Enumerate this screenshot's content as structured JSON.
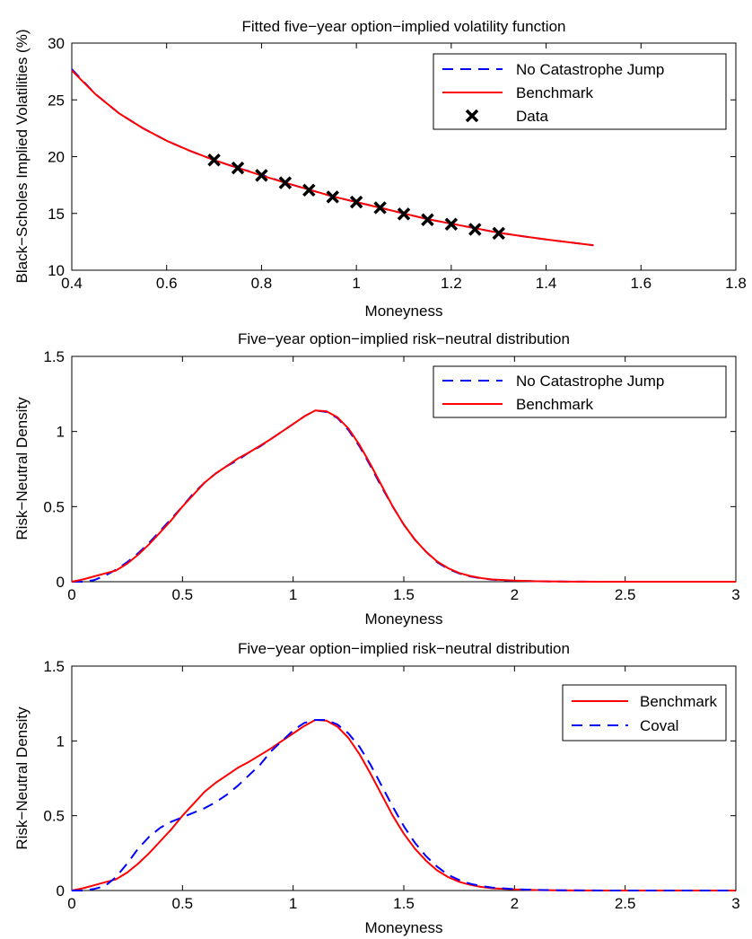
{
  "chart_data": [
    {
      "type": "line",
      "title": "Fitted five−year option−implied volatility function",
      "xlabel": "Moneyness",
      "ylabel": "Black−Scholes Implied Volatilities (%)",
      "xlim": [
        0.4,
        1.8
      ],
      "ylim": [
        10,
        30
      ],
      "xticks": [
        0.4,
        0.6,
        0.8,
        1,
        1.2,
        1.4,
        1.6,
        1.8
      ],
      "xtick_labels": [
        "0.4",
        "0.6",
        "0.8",
        "1",
        "1.2",
        "1.4",
        "1.6",
        "1.8"
      ],
      "yticks": [
        10,
        15,
        20,
        25,
        30
      ],
      "ytick_labels": [
        "10",
        "15",
        "20",
        "25",
        "30"
      ],
      "grid": false,
      "legend_position": "top-right",
      "series": [
        {
          "name": "No Catastrophe Jump",
          "style": "dashed",
          "color": "#0000ff",
          "x": [
            0.4,
            0.45,
            0.5,
            0.55,
            0.6,
            0.65,
            0.7,
            0.75,
            0.8,
            0.85,
            0.9,
            0.95,
            1.0,
            1.05,
            1.1,
            1.15,
            1.2,
            1.25,
            1.3,
            1.35,
            1.4,
            1.45,
            1.5
          ],
          "y": [
            27.7,
            25.5,
            23.8,
            22.5,
            21.4,
            20.5,
            19.7,
            19.0,
            18.4,
            17.7,
            17.1,
            16.5,
            16.0,
            15.5,
            15.0,
            14.5,
            14.1,
            13.7,
            13.3,
            13.0,
            12.7,
            12.45,
            12.2
          ]
        },
        {
          "name": "Benchmark",
          "style": "solid",
          "color": "#ff0000",
          "x": [
            0.4,
            0.45,
            0.5,
            0.55,
            0.6,
            0.65,
            0.7,
            0.75,
            0.8,
            0.85,
            0.9,
            0.95,
            1.0,
            1.05,
            1.1,
            1.15,
            1.2,
            1.25,
            1.3,
            1.35,
            1.4,
            1.45,
            1.5
          ],
          "y": [
            27.6,
            25.5,
            23.8,
            22.5,
            21.4,
            20.5,
            19.7,
            19.0,
            18.35,
            17.7,
            17.1,
            16.5,
            16.0,
            15.5,
            15.0,
            14.5,
            14.1,
            13.7,
            13.3,
            13.0,
            12.7,
            12.45,
            12.2
          ]
        },
        {
          "name": "Data",
          "style": "markers",
          "color": "#000000",
          "x": [
            0.7,
            0.75,
            0.8,
            0.85,
            0.9,
            0.95,
            1.0,
            1.05,
            1.1,
            1.15,
            1.2,
            1.25,
            1.3
          ],
          "y": [
            19.7,
            19.0,
            18.35,
            17.7,
            17.05,
            16.45,
            16.0,
            15.5,
            14.95,
            14.45,
            14.05,
            13.6,
            13.25
          ]
        }
      ]
    },
    {
      "type": "line",
      "title": "Five−year option−implied risk−neutral distribution",
      "xlabel": "Moneyness",
      "ylabel": "Risk−Neutral Density",
      "xlim": [
        0,
        3
      ],
      "ylim": [
        0,
        1.5
      ],
      "xticks": [
        0,
        0.5,
        1,
        1.5,
        2,
        2.5,
        3
      ],
      "xtick_labels": [
        "0",
        "0.5",
        "1",
        "1.5",
        "2",
        "2.5",
        "3"
      ],
      "yticks": [
        0,
        0.5,
        1,
        1.5
      ],
      "ytick_labels": [
        "0",
        "0.5",
        "1",
        "1.5"
      ],
      "grid": false,
      "legend_position": "top-right",
      "series": [
        {
          "name": "No Catastrophe Jump",
          "style": "dashed",
          "color": "#0000ff",
          "x": [
            0,
            0.05,
            0.1,
            0.15,
            0.2,
            0.25,
            0.3,
            0.35,
            0.4,
            0.45,
            0.5,
            0.55,
            0.6,
            0.65,
            0.7,
            0.75,
            0.8,
            0.85,
            0.9,
            0.95,
            1.0,
            1.05,
            1.1,
            1.15,
            1.2,
            1.25,
            1.3,
            1.35,
            1.4,
            1.45,
            1.5,
            1.55,
            1.6,
            1.65,
            1.7,
            1.75,
            1.8,
            1.85,
            1.9,
            2.0,
            2.1,
            2.2,
            2.4,
            2.6,
            3.0
          ],
          "y": [
            0,
            0.0,
            0.01,
            0.04,
            0.08,
            0.13,
            0.19,
            0.26,
            0.34,
            0.42,
            0.5,
            0.59,
            0.66,
            0.72,
            0.77,
            0.81,
            0.86,
            0.9,
            0.95,
            1.0,
            1.05,
            1.1,
            1.14,
            1.13,
            1.09,
            1.01,
            0.9,
            0.77,
            0.63,
            0.5,
            0.38,
            0.28,
            0.2,
            0.13,
            0.085,
            0.055,
            0.035,
            0.022,
            0.014,
            0.006,
            0.003,
            0.001,
            0.0,
            0.0,
            0.0
          ]
        },
        {
          "name": "Benchmark",
          "style": "solid",
          "color": "#ff0000",
          "x": [
            0,
            0.05,
            0.1,
            0.15,
            0.2,
            0.25,
            0.3,
            0.35,
            0.4,
            0.45,
            0.5,
            0.55,
            0.6,
            0.65,
            0.7,
            0.75,
            0.8,
            0.85,
            0.9,
            0.95,
            1.0,
            1.05,
            1.1,
            1.15,
            1.2,
            1.25,
            1.3,
            1.35,
            1.4,
            1.45,
            1.5,
            1.55,
            1.6,
            1.65,
            1.7,
            1.75,
            1.8,
            1.85,
            1.9,
            2.0,
            2.1,
            2.2,
            2.4,
            2.6,
            3.0
          ],
          "y": [
            0,
            0.015,
            0.035,
            0.055,
            0.075,
            0.12,
            0.18,
            0.25,
            0.33,
            0.41,
            0.5,
            0.58,
            0.66,
            0.72,
            0.77,
            0.82,
            0.86,
            0.905,
            0.95,
            1.0,
            1.05,
            1.1,
            1.14,
            1.135,
            1.095,
            1.02,
            0.91,
            0.78,
            0.64,
            0.5,
            0.38,
            0.28,
            0.2,
            0.135,
            0.09,
            0.058,
            0.038,
            0.024,
            0.015,
            0.007,
            0.003,
            0.001,
            0.0,
            0.0,
            0.0
          ]
        }
      ]
    },
    {
      "type": "line",
      "title": "Five−year option−implied risk−neutral distribution",
      "xlabel": "Moneyness",
      "ylabel": "Risk−Neutral Density",
      "xlim": [
        0,
        3
      ],
      "ylim": [
        0,
        1.5
      ],
      "xticks": [
        0,
        0.5,
        1,
        1.5,
        2,
        2.5,
        3
      ],
      "xtick_labels": [
        "0",
        "0.5",
        "1",
        "1.5",
        "2",
        "2.5",
        "3"
      ],
      "yticks": [
        0,
        0.5,
        1,
        1.5
      ],
      "ytick_labels": [
        "0",
        "0.5",
        "1",
        "1.5"
      ],
      "grid": false,
      "legend_position": "right",
      "series": [
        {
          "name": "Benchmark",
          "style": "solid",
          "color": "#ff0000",
          "x": [
            0,
            0.05,
            0.1,
            0.15,
            0.2,
            0.25,
            0.3,
            0.35,
            0.4,
            0.45,
            0.5,
            0.55,
            0.6,
            0.65,
            0.7,
            0.75,
            0.8,
            0.85,
            0.9,
            0.95,
            1.0,
            1.05,
            1.1,
            1.15,
            1.2,
            1.25,
            1.3,
            1.35,
            1.4,
            1.45,
            1.5,
            1.55,
            1.6,
            1.65,
            1.7,
            1.75,
            1.8,
            1.85,
            1.9,
            2.0,
            2.1,
            2.2,
            2.4,
            2.6,
            3.0
          ],
          "y": [
            0,
            0.015,
            0.035,
            0.055,
            0.075,
            0.12,
            0.18,
            0.25,
            0.33,
            0.41,
            0.5,
            0.58,
            0.66,
            0.72,
            0.77,
            0.82,
            0.86,
            0.905,
            0.95,
            1.0,
            1.05,
            1.1,
            1.14,
            1.135,
            1.095,
            1.02,
            0.91,
            0.78,
            0.64,
            0.5,
            0.38,
            0.28,
            0.2,
            0.135,
            0.09,
            0.058,
            0.038,
            0.024,
            0.015,
            0.007,
            0.003,
            0.001,
            0.0,
            0.0,
            0.0
          ]
        },
        {
          "name": "Coval",
          "style": "dashed",
          "color": "#0000ff",
          "x": [
            0,
            0.05,
            0.1,
            0.15,
            0.2,
            0.25,
            0.3,
            0.35,
            0.4,
            0.45,
            0.5,
            0.55,
            0.6,
            0.65,
            0.7,
            0.75,
            0.8,
            0.85,
            0.9,
            0.95,
            1.0,
            1.05,
            1.1,
            1.15,
            1.2,
            1.25,
            1.3,
            1.35,
            1.4,
            1.45,
            1.5,
            1.55,
            1.6,
            1.65,
            1.7,
            1.75,
            1.8,
            1.85,
            1.9,
            2.0,
            2.1,
            2.2,
            2.4,
            2.6,
            3.0
          ],
          "y": [
            0,
            0.0,
            0.01,
            0.03,
            0.09,
            0.18,
            0.28,
            0.36,
            0.42,
            0.46,
            0.49,
            0.52,
            0.55,
            0.59,
            0.64,
            0.7,
            0.77,
            0.84,
            0.93,
            1.0,
            1.07,
            1.12,
            1.14,
            1.14,
            1.11,
            1.05,
            0.96,
            0.84,
            0.7,
            0.56,
            0.43,
            0.32,
            0.23,
            0.16,
            0.105,
            0.07,
            0.045,
            0.03,
            0.019,
            0.009,
            0.004,
            0.002,
            0.0,
            0.0,
            0.0
          ]
        }
      ]
    }
  ]
}
